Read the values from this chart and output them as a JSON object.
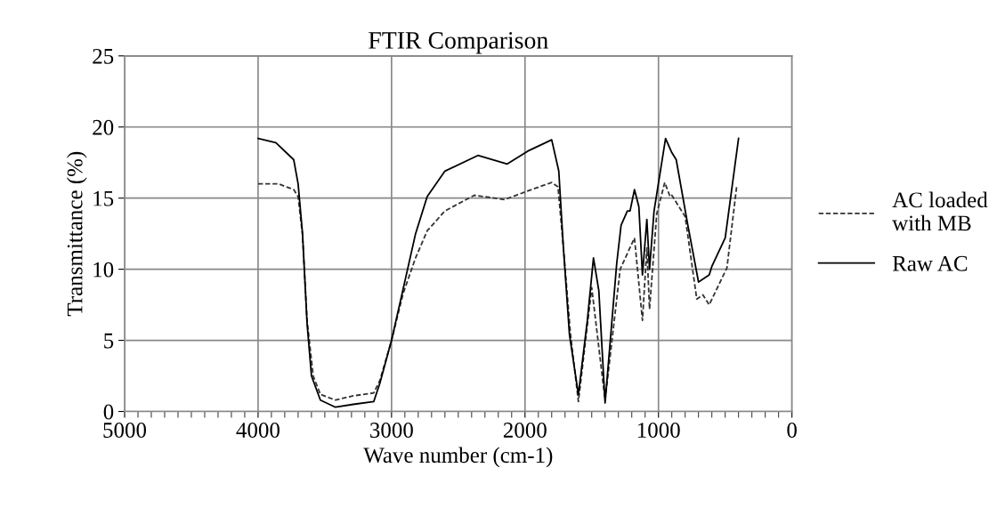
{
  "chart_data": {
    "type": "line",
    "title": "FTIR Comparison",
    "xlabel": "Wave number (cm-1)",
    "ylabel": "Transmittance (%)",
    "xlim": [
      5000,
      0
    ],
    "xticks": [
      5000,
      4000,
      3000,
      2000,
      1000,
      0
    ],
    "ylim": [
      0,
      25
    ],
    "yticks": [
      0,
      5,
      10,
      15,
      20,
      25
    ],
    "grid": true,
    "legend": "right",
    "marker": "none",
    "series": [
      {
        "name": "AC loaded\nwith MB",
        "color": "#333333",
        "line_style": "dashed",
        "x": [
          4000,
          3847,
          3733,
          3700,
          3667,
          3633,
          3587,
          3533,
          3420,
          3287,
          3133,
          3087,
          3000,
          2913,
          2820,
          2733,
          2600,
          2380,
          2153,
          1980,
          1800,
          1753,
          1713,
          1660,
          1600,
          1500,
          1400,
          1287,
          1180,
          1120,
          1087,
          1067,
          1013,
          953,
          913,
          900,
          800,
          713,
          667,
          620,
          487,
          413
        ],
        "values": [
          16.0,
          16.0,
          15.6,
          15.1,
          12.4,
          6.4,
          2.5,
          1.2,
          0.8,
          1.1,
          1.3,
          2.2,
          5.0,
          8.3,
          10.8,
          12.7,
          14.1,
          15.2,
          14.9,
          15.5,
          16.1,
          15.8,
          11.6,
          5.5,
          0.7,
          8.7,
          0.8,
          10.0,
          12.2,
          6.4,
          11.5,
          7.2,
          13.9,
          16.1,
          15.1,
          15.2,
          13.7,
          7.9,
          8.2,
          7.5,
          10.1,
          15.9
        ]
      },
      {
        "name": "Raw AC",
        "color": "#000000",
        "line_style": "solid",
        "x": [
          4000,
          3867,
          3733,
          3700,
          3667,
          3633,
          3600,
          3533,
          3420,
          3287,
          3133,
          3087,
          3000,
          2887,
          2820,
          2733,
          2600,
          2353,
          2133,
          1980,
          1800,
          1747,
          1713,
          1667,
          1600,
          1533,
          1487,
          1447,
          1400,
          1313,
          1280,
          1233,
          1213,
          1180,
          1147,
          1120,
          1087,
          1067,
          1033,
          947,
          900,
          867,
          780,
          700,
          620,
          600,
          500,
          400
        ],
        "values": [
          19.2,
          18.9,
          17.7,
          16.0,
          12.5,
          6.2,
          2.5,
          0.8,
          0.3,
          0.5,
          0.7,
          2.0,
          5.0,
          9.7,
          12.5,
          15.1,
          16.9,
          18.0,
          17.4,
          18.3,
          19.1,
          16.9,
          11.6,
          5.4,
          1.2,
          6.4,
          10.8,
          8.5,
          0.6,
          10.4,
          13.1,
          14.1,
          14.1,
          15.6,
          14.4,
          9.6,
          13.5,
          10.0,
          14.1,
          19.2,
          18.2,
          17.7,
          13.1,
          9.1,
          9.6,
          10.2,
          12.2,
          19.2
        ]
      }
    ]
  }
}
